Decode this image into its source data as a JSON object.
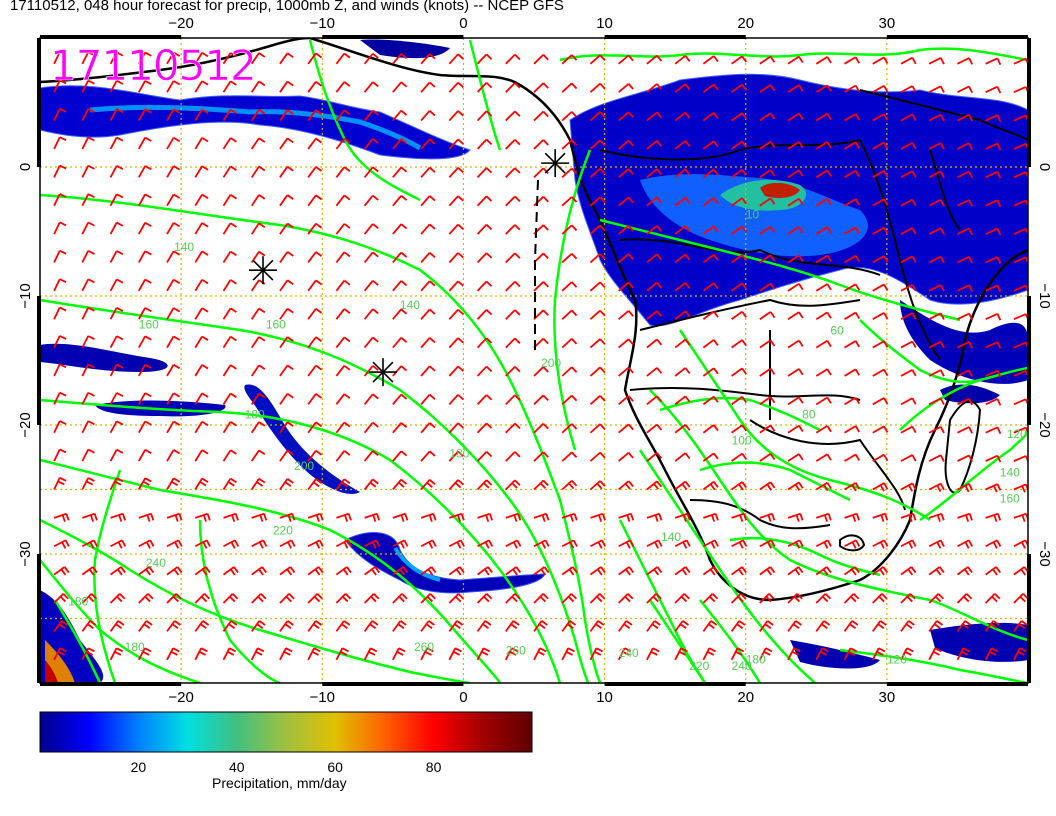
{
  "title": "17110512, 048 hour forecast for precip, 1000mb Z, and winds (knots) -- NCEP GFS",
  "stamp": "17110512",
  "map": {
    "lon_range": [
      -30,
      40
    ],
    "lat_range": [
      -40,
      10
    ],
    "lon_ticks": [
      {
        "value": -20,
        "label": "−20"
      },
      {
        "value": -10,
        "label": "−10"
      },
      {
        "value": 0,
        "label": "0"
      },
      {
        "value": 10,
        "label": "10"
      },
      {
        "value": 20,
        "label": "20"
      },
      {
        "value": 30,
        "label": "30"
      }
    ],
    "lat_ticks": [
      {
        "value": 0,
        "label": "0"
      },
      {
        "value": -10,
        "label": "−10"
      },
      {
        "value": -20,
        "label": "−20"
      },
      {
        "value": -30,
        "label": "−30"
      }
    ],
    "contour_labels": [
      {
        "text": "140",
        "lon": -20.5,
        "lat": -6.5
      },
      {
        "text": "160",
        "lon": -23,
        "lat": -12.5
      },
      {
        "text": "160",
        "lon": -14,
        "lat": -12.5
      },
      {
        "text": "140",
        "lon": -4.5,
        "lat": -11
      },
      {
        "text": "180",
        "lon": -15.5,
        "lat": -19.5
      },
      {
        "text": "200",
        "lon": -12,
        "lat": -23.5
      },
      {
        "text": "180",
        "lon": -1,
        "lat": -22.5
      },
      {
        "text": "220",
        "lon": -13.5,
        "lat": -28.5
      },
      {
        "text": "240",
        "lon": -22.5,
        "lat": -31
      },
      {
        "text": "260",
        "lon": -3.5,
        "lat": -37.5
      },
      {
        "text": "260",
        "lon": 3,
        "lat": -37.8
      },
      {
        "text": "200",
        "lon": 5.5,
        "lat": -15.5
      },
      {
        "text": "180",
        "lon": -28,
        "lat": -34
      },
      {
        "text": "180",
        "lon": -24,
        "lat": -37.5
      },
      {
        "text": "240",
        "lon": 11,
        "lat": -38
      },
      {
        "text": "220",
        "lon": 16,
        "lat": -39
      },
      {
        "text": "240",
        "lon": 19,
        "lat": -39
      },
      {
        "text": "180",
        "lon": 20,
        "lat": -38.5
      },
      {
        "text": "80",
        "lon": 24,
        "lat": -19.5
      },
      {
        "text": "100",
        "lon": 19,
        "lat": -21.5
      },
      {
        "text": "120",
        "lon": 38.5,
        "lat": -21
      },
      {
        "text": "140",
        "lon": 38,
        "lat": -24
      },
      {
        "text": "160",
        "lon": 38,
        "lat": -26
      },
      {
        "text": "120",
        "lon": 30,
        "lat": -38.5
      },
      {
        "text": "10",
        "lon": 20,
        "lat": -4
      },
      {
        "text": "60",
        "lon": 26,
        "lat": -13
      },
      {
        "text": "140",
        "lon": 14,
        "lat": -29
      }
    ],
    "markers": [
      {
        "name": "marker-northwest",
        "lon": -14.2,
        "lat": -8
      },
      {
        "name": "marker-central",
        "lon": -5.7,
        "lat": -15.9
      },
      {
        "name": "marker-coast",
        "lon": 6.5,
        "lat": 0.3
      }
    ],
    "colors": {
      "contour": "#00ff00",
      "barb": "#ff0000",
      "grid": "#d8b400",
      "stamp": "#ff00ff",
      "contour_label": "#55cc55"
    }
  },
  "colorbar": {
    "label": "Precipitation, mm/day",
    "ticks": [
      {
        "value": 20,
        "label": "20"
      },
      {
        "value": 40,
        "label": "40"
      },
      {
        "value": 60,
        "label": "60"
      },
      {
        "value": 80,
        "label": "80"
      }
    ],
    "range": [
      0,
      100
    ],
    "stops": [
      "#00008b",
      "#0000ff",
      "#0080ff",
      "#00e0e0",
      "#40c080",
      "#a0c040",
      "#e0c000",
      "#ff6000",
      "#ff0000",
      "#a00000",
      "#600000"
    ]
  }
}
